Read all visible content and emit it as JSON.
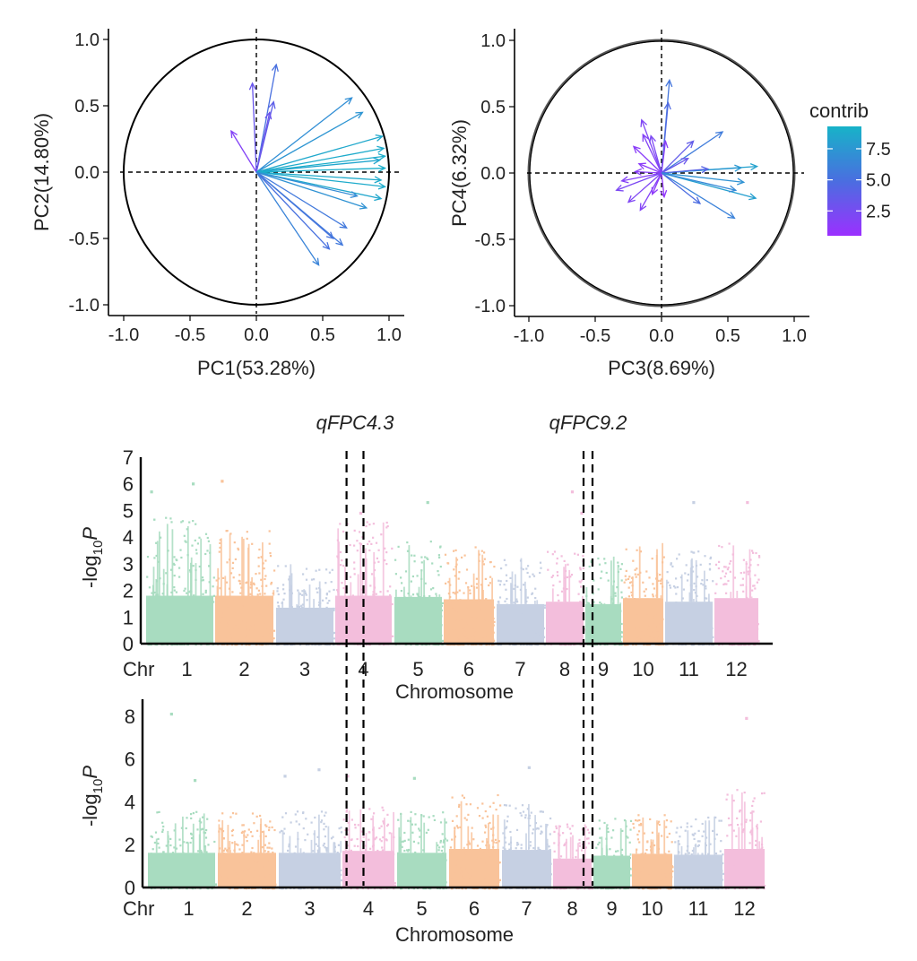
{
  "chart_data": [
    {
      "type": "scatter",
      "subtype": "pca-variable-correlation-circle",
      "xlabel": "PC1(53.28%)",
      "ylabel": "PC2(14.80%)",
      "xlim": [
        -1.0,
        1.0
      ],
      "ylim": [
        -1.0,
        1.0
      ],
      "ticks": [
        "-1.0",
        "-0.5",
        "0.0",
        "0.5",
        "1.0"
      ],
      "tick_values": [
        -1.0,
        -0.5,
        0.0,
        0.5,
        1.0
      ],
      "arrows": [
        {
          "x": 0.15,
          "y": 0.81,
          "contrib": 5.0
        },
        {
          "x": -0.03,
          "y": 0.67,
          "contrib": 3.2
        },
        {
          "x": 0.13,
          "y": 0.53,
          "contrib": 3.8
        },
        {
          "x": 0.1,
          "y": 0.45,
          "contrib": 3.0
        },
        {
          "x": -0.19,
          "y": 0.31,
          "contrib": 1.8
        },
        {
          "x": 0.72,
          "y": 0.56,
          "contrib": 7.0
        },
        {
          "x": 0.8,
          "y": 0.45,
          "contrib": 7.4
        },
        {
          "x": 0.95,
          "y": 0.27,
          "contrib": 8.6
        },
        {
          "x": 0.96,
          "y": 0.18,
          "contrib": 8.8
        },
        {
          "x": 0.97,
          "y": 0.12,
          "contrib": 8.9
        },
        {
          "x": 0.93,
          "y": 0.09,
          "contrib": 8.4
        },
        {
          "x": 0.97,
          "y": 0.03,
          "contrib": 9.0
        },
        {
          "x": 0.94,
          "y": -0.06,
          "contrib": 8.7
        },
        {
          "x": 0.97,
          "y": -0.11,
          "contrib": 8.8
        },
        {
          "x": 0.94,
          "y": -0.2,
          "contrib": 8.5
        },
        {
          "x": 0.76,
          "y": -0.18,
          "contrib": 6.8
        },
        {
          "x": 0.83,
          "y": -0.27,
          "contrib": 7.2
        },
        {
          "x": 0.68,
          "y": -0.42,
          "contrib": 5.6
        },
        {
          "x": 0.58,
          "y": -0.5,
          "contrib": 5.2
        },
        {
          "x": 0.65,
          "y": -0.55,
          "contrib": 5.6
        },
        {
          "x": 0.55,
          "y": -0.58,
          "contrib": 5.1
        },
        {
          "x": 0.47,
          "y": -0.7,
          "contrib": 6.3
        }
      ]
    },
    {
      "type": "scatter",
      "subtype": "pca-variable-correlation-circle",
      "xlabel": "PC3(8.69%)",
      "ylabel": "PC4(6.32%)",
      "xlim": [
        -1.0,
        1.0
      ],
      "ylim": [
        -1.0,
        1.0
      ],
      "ticks": [
        "-1.0",
        "-0.5",
        "0.0",
        "0.5",
        "1.0"
      ],
      "tick_values": [
        -1.0,
        -0.5,
        0.0,
        0.5,
        1.0
      ],
      "legend": {
        "title": "contrib",
        "position": "right",
        "ticks": [
          "7.5",
          "5.0",
          "2.5"
        ],
        "tick_values": [
          7.5,
          5.0,
          2.5
        ],
        "range": [
          0.5,
          9.3
        ],
        "colors": [
          "#9b30ff",
          "#4a6ee0",
          "#17b3c8"
        ]
      },
      "arrows": [
        {
          "x": 0.06,
          "y": 0.7,
          "contrib": 5.4
        },
        {
          "x": 0.05,
          "y": 0.53,
          "contrib": 4.6
        },
        {
          "x": -0.15,
          "y": 0.4,
          "contrib": 2.0
        },
        {
          "x": -0.14,
          "y": 0.29,
          "contrib": 1.8
        },
        {
          "x": -0.08,
          "y": 0.28,
          "contrib": 2.2
        },
        {
          "x": 0.03,
          "y": 0.24,
          "contrib": 1.6
        },
        {
          "x": -0.21,
          "y": 0.2,
          "contrib": 1.4
        },
        {
          "x": 0.46,
          "y": 0.31,
          "contrib": 5.8
        },
        {
          "x": 0.24,
          "y": 0.24,
          "contrib": 3.6
        },
        {
          "x": 0.2,
          "y": 0.11,
          "contrib": 3.2
        },
        {
          "x": 0.72,
          "y": 0.05,
          "contrib": 8.2
        },
        {
          "x": 0.6,
          "y": 0.04,
          "contrib": 7.6
        },
        {
          "x": 0.35,
          "y": 0.03,
          "contrib": 4.2
        },
        {
          "x": -0.17,
          "y": 0.07,
          "contrib": 1.3
        },
        {
          "x": -0.2,
          "y": 0.01,
          "contrib": 1.5
        },
        {
          "x": -0.3,
          "y": -0.06,
          "contrib": 1.7
        },
        {
          "x": -0.34,
          "y": -0.13,
          "contrib": 2.2
        },
        {
          "x": -0.25,
          "y": -0.22,
          "contrib": 2.0
        },
        {
          "x": -0.16,
          "y": -0.28,
          "contrib": 1.8
        },
        {
          "x": -0.07,
          "y": -0.16,
          "contrib": 1.2
        },
        {
          "x": 0.02,
          "y": -0.18,
          "contrib": 1.0
        },
        {
          "x": 0.62,
          "y": -0.07,
          "contrib": 7.2
        },
        {
          "x": 0.71,
          "y": -0.19,
          "contrib": 8.0
        },
        {
          "x": 0.56,
          "y": -0.13,
          "contrib": 6.6
        },
        {
          "x": 0.55,
          "y": -0.34,
          "contrib": 6.2
        },
        {
          "x": 0.29,
          "y": -0.23,
          "contrib": 4.8
        }
      ]
    },
    {
      "type": "scatter",
      "subtype": "manhattan",
      "xlabel": "Chromosome",
      "ylabel_base": "-log",
      "ylabel_sub": "10",
      "ylabel_var": "P",
      "axis_prefix": "Chr",
      "ylim": [
        0,
        7
      ],
      "yticks": [
        "0",
        "1",
        "2",
        "3",
        "4",
        "5",
        "6",
        "7"
      ],
      "ytick_values": [
        0,
        1,
        2,
        3,
        4,
        5,
        6,
        7
      ],
      "chromosomes": [
        "1",
        "2",
        "3",
        "4",
        "5",
        "6",
        "7",
        "8",
        "9",
        "10",
        "11",
        "12"
      ],
      "band_max": [
        4.8,
        4.3,
        3.0,
        4.6,
        3.9,
        3.7,
        3.3,
        3.5,
        3.3,
        3.8,
        3.5,
        3.8
      ],
      "peaks": [
        {
          "chr": "1",
          "pos": 0.08,
          "value": 5.7
        },
        {
          "chr": "1",
          "pos": 0.7,
          "value": 6.0
        },
        {
          "chr": "2",
          "pos": 0.12,
          "value": 6.1
        },
        {
          "chr": "4",
          "pos": 0.45,
          "value": 4.9
        },
        {
          "chr": "5",
          "pos": 0.7,
          "value": 5.3
        },
        {
          "chr": "8",
          "pos": 0.7,
          "value": 5.7
        },
        {
          "chr": "8",
          "pos": 0.95,
          "value": 4.9
        },
        {
          "chr": "11",
          "pos": 0.6,
          "value": 5.3
        },
        {
          "chr": "12",
          "pos": 0.75,
          "value": 5.3
        }
      ],
      "qtl": [
        {
          "label": "qFPC4.3",
          "start_chr": "4",
          "start_pos": 0.2,
          "end_chr": "4",
          "end_pos": 0.5
        },
        {
          "label": "qFPC9.2",
          "start_chr": "8",
          "start_pos": 1.0,
          "end_chr": "9",
          "end_pos": 0.2
        }
      ]
    },
    {
      "type": "scatter",
      "subtype": "manhattan",
      "xlabel": "Chromosome",
      "ylabel_base": "-log",
      "ylabel_sub": "10",
      "ylabel_var": "P",
      "axis_prefix": "Chr",
      "ylim": [
        0,
        9
      ],
      "yticks": [
        "0",
        "2",
        "4",
        "6",
        "8"
      ],
      "ytick_values": [
        0,
        2,
        4,
        6,
        8
      ],
      "chromosomes": [
        "1",
        "2",
        "3",
        "4",
        "5",
        "6",
        "7",
        "8",
        "9",
        "10",
        "11",
        "12"
      ],
      "band_max": [
        3.6,
        3.6,
        3.6,
        3.8,
        3.6,
        4.5,
        3.9,
        3.0,
        3.3,
        3.5,
        3.4,
        4.6
      ],
      "peaks": [
        {
          "chr": "1",
          "pos": 0.35,
          "value": 8.1
        },
        {
          "chr": "1",
          "pos": 0.7,
          "value": 5.0
        },
        {
          "chr": "3",
          "pos": 0.1,
          "value": 5.2
        },
        {
          "chr": "3",
          "pos": 0.65,
          "value": 5.5
        },
        {
          "chr": "4",
          "pos": 0.1,
          "value": 5.2
        },
        {
          "chr": "5",
          "pos": 0.35,
          "value": 5.1
        },
        {
          "chr": "7",
          "pos": 0.55,
          "value": 5.6
        },
        {
          "chr": "12",
          "pos": 0.55,
          "value": 7.9
        }
      ]
    }
  ],
  "manhattan_palette": [
    "#a8dcc0",
    "#f9c39a",
    "#c6d0e3",
    "#f3bedc"
  ]
}
